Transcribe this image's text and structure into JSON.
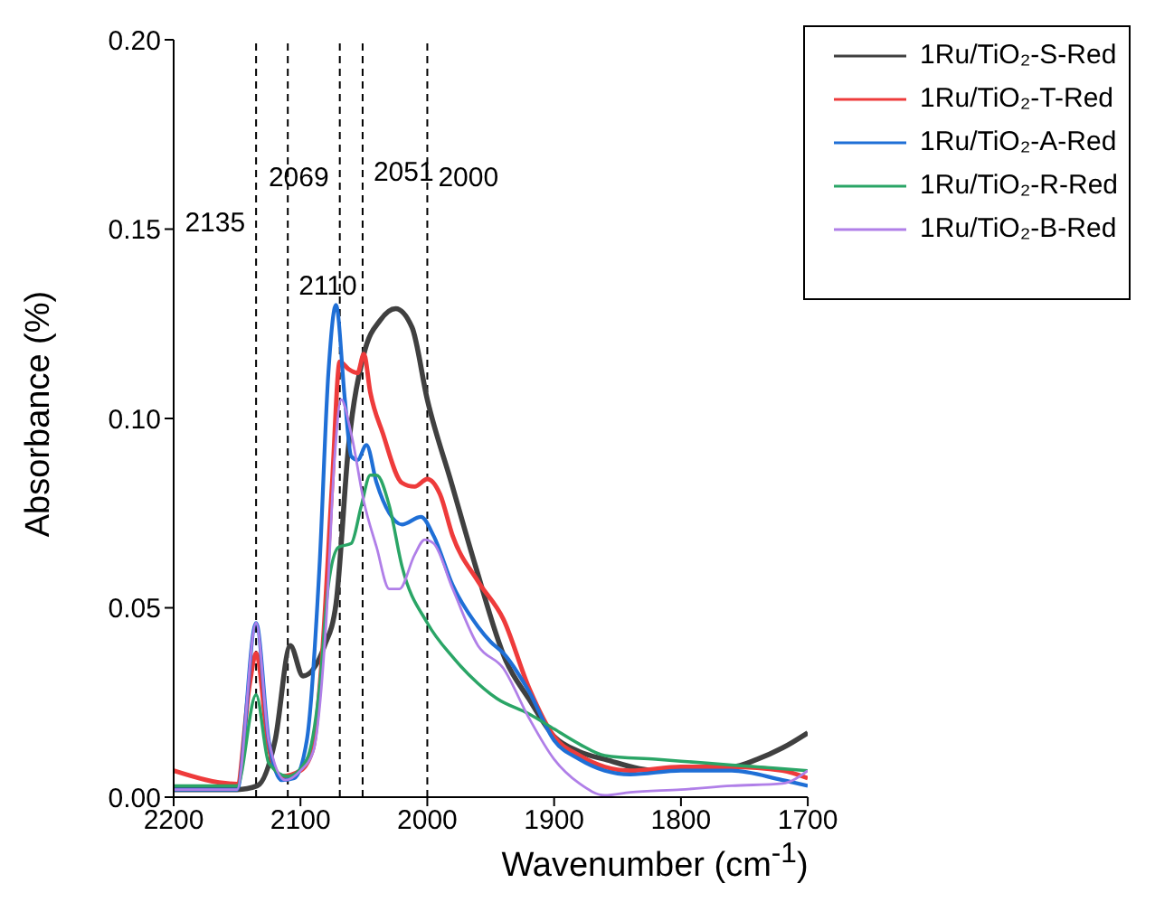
{
  "chart_data": {
    "type": "line",
    "xlabel": "Wavenumber (cm$^{-1}$)",
    "ylabel": "Absorbance (%)",
    "xlim": [
      2200,
      1700
    ],
    "xticks": [
      2200,
      2100,
      2000,
      1900,
      1800,
      1700
    ],
    "ylim": [
      0,
      0.2
    ],
    "yticks": [
      {
        "value": 0,
        "label": "0.00"
      },
      {
        "value": 0.05,
        "label": "0.05"
      },
      {
        "value": 0.1,
        "label": "0.10"
      },
      {
        "value": 0.15,
        "label": "0.15"
      },
      {
        "value": 0.2,
        "label": "0.20"
      }
    ],
    "legend": "top right",
    "grid": false,
    "marker": "none",
    "line_style": "solid",
    "ref_lines": [
      {
        "axis": "x",
        "value": 2135,
        "label": "2135",
        "color": "#000000",
        "line_style": "dashed"
      },
      {
        "axis": "x",
        "value": 2110,
        "label": "2110",
        "color": "#000000",
        "line_style": "dashed"
      },
      {
        "axis": "x",
        "value": 2069,
        "label": "2069",
        "color": "#000000",
        "line_style": "dashed"
      },
      {
        "axis": "x",
        "value": 2051,
        "label": "2051",
        "color": "#000000",
        "line_style": "dashed"
      },
      {
        "axis": "x",
        "value": 2000,
        "label": "2000",
        "color": "#000000",
        "line_style": "dashed"
      }
    ],
    "series": [
      {
        "name": "1Ru/TiO₂-S-Red",
        "color": "#404040",
        "x": [
          2200,
          2150,
          2134,
          2120,
          2108,
          2098,
          2081,
          2072,
          2062,
          2050,
          2037,
          2025,
          2012,
          2000,
          1981,
          1962,
          1938,
          1920,
          1900,
          1880,
          1860,
          1820,
          1780,
          1760,
          1740,
          1720,
          1700
        ],
        "values": [
          0.002,
          0.002,
          0.003,
          0.015,
          0.04,
          0.032,
          0.04,
          0.051,
          0.093,
          0.117,
          0.126,
          0.129,
          0.124,
          0.105,
          0.083,
          0.061,
          0.036,
          0.026,
          0.016,
          0.012,
          0.01,
          0.007,
          0.008,
          0.008,
          0.01,
          0.013,
          0.017
        ]
      },
      {
        "name": "1Ru/TiO₂-T-Red",
        "color": "#ee3b3b",
        "x": [
          2200,
          2150,
          2140,
          2135,
          2125,
          2115,
          2100,
          2090,
          2083,
          2075,
          2069,
          2062,
          2055,
          2050,
          2045,
          2035,
          2020,
          2010,
          2000,
          1990,
          1980,
          1960,
          1940,
          1920,
          1900,
          1880,
          1860,
          1840,
          1800,
          1760,
          1720,
          1700
        ],
        "values": [
          0.007,
          0.0035,
          0.03,
          0.038,
          0.013,
          0.0055,
          0.007,
          0.013,
          0.037,
          0.083,
          0.115,
          0.113,
          0.112,
          0.117,
          0.107,
          0.096,
          0.083,
          0.082,
          0.084,
          0.08,
          0.069,
          0.057,
          0.047,
          0.029,
          0.016,
          0.011,
          0.008,
          0.007,
          0.008,
          0.008,
          0.007,
          0.005
        ]
      },
      {
        "name": "1Ru/TiO₂-A-Red",
        "color": "#1f6fd6",
        "x": [
          2200,
          2150,
          2135,
          2125,
          2115,
          2105,
          2095,
          2085,
          2078,
          2072,
          2065,
          2060,
          2055,
          2048,
          2040,
          2030,
          2020,
          2005,
          1995,
          1980,
          1960,
          1950,
          1940,
          1920,
          1900,
          1880,
          1860,
          1840,
          1800,
          1760,
          1720,
          1700
        ],
        "values": [
          0.002,
          0.002,
          0.046,
          0.015,
          0.0045,
          0.005,
          0.015,
          0.061,
          0.112,
          0.13,
          0.105,
          0.09,
          0.089,
          0.093,
          0.083,
          0.075,
          0.072,
          0.074,
          0.069,
          0.056,
          0.045,
          0.041,
          0.038,
          0.028,
          0.015,
          0.01,
          0.007,
          0.006,
          0.007,
          0.007,
          0.0045,
          0.003
        ]
      },
      {
        "name": "1Ru/TiO₂-R-Red",
        "color": "#2aa566",
        "x": [
          2200,
          2150,
          2135,
          2125,
          2110,
          2095,
          2085,
          2078,
          2070,
          2060,
          2052,
          2045,
          2040,
          2030,
          2020,
          2000,
          1980,
          1960,
          1945,
          1920,
          1900,
          1880,
          1860,
          1820,
          1780,
          1740,
          1700
        ],
        "values": [
          0.003,
          0.003,
          0.027,
          0.009,
          0.0055,
          0.01,
          0.029,
          0.056,
          0.066,
          0.067,
          0.077,
          0.085,
          0.085,
          0.077,
          0.061,
          0.046,
          0.037,
          0.03,
          0.026,
          0.022,
          0.018,
          0.014,
          0.011,
          0.01,
          0.009,
          0.008,
          0.007
        ]
      },
      {
        "name": "1Ru/TiO₂-B-Red",
        "color": "#b07fe8",
        "x": [
          2200,
          2150,
          2135,
          2125,
          2112,
          2100,
          2090,
          2080,
          2073,
          2068,
          2060,
          2050,
          2040,
          2030,
          2022,
          2010,
          2002,
          1995,
          1980,
          1960,
          1940,
          1920,
          1900,
          1880,
          1860,
          1840,
          1800,
          1760,
          1720,
          1700
        ],
        "values": [
          0.002,
          0.002,
          0.046,
          0.015,
          0.0045,
          0.007,
          0.012,
          0.045,
          0.09,
          0.105,
          0.096,
          0.078,
          0.066,
          0.055,
          0.055,
          0.064,
          0.068,
          0.067,
          0.055,
          0.04,
          0.034,
          0.021,
          0.01,
          0.0036,
          0.0005,
          0.0013,
          0.002,
          0.003,
          0.0036,
          0.007
        ]
      }
    ]
  }
}
